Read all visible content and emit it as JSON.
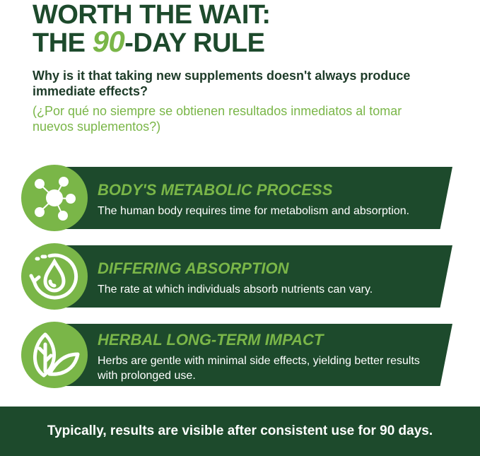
{
  "title": {
    "line1": "WORTH THE WAIT:",
    "line2_pre": "THE ",
    "line2_num": "90",
    "line2_post": "-DAY RULE"
  },
  "question": "Why is it that taking new supplements doesn't always produce immediate effects?",
  "question_es": "(¿Por qué no siempre se obtienen resultados inmediatos al tomar nuevos suplementos?)",
  "items": [
    {
      "icon": "molecule-icon",
      "title": "BODY'S METABOLIC PROCESS",
      "desc": "The human body requires time for metabolism and absorption."
    },
    {
      "icon": "water-drop-cycle-icon",
      "title": "DIFFERING ABSORPTION",
      "desc": "The rate at which individuals absorb nutrients can vary."
    },
    {
      "icon": "leaf-icon",
      "title": "HERBAL LONG-TERM IMPACT",
      "desc": "Herbs are gentle with minimal side effects, yielding better results with prolonged use."
    }
  ],
  "footer": "Typically, results are visible after consistent use for 90 days.",
  "colors": {
    "dark_green": "#1d4a2c",
    "light_green": "#7ab648"
  }
}
